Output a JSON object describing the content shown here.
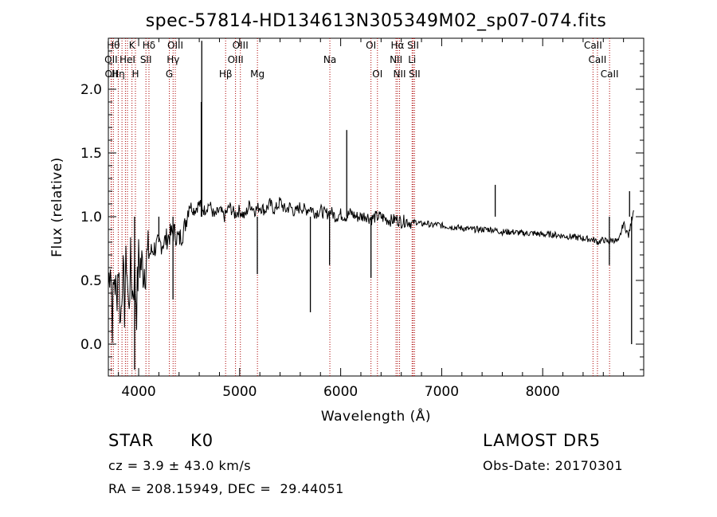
{
  "chart_data": {
    "type": "line",
    "title": "spec-57814-HD134613N305349M02_sp07-074.fits",
    "xlabel": "Wavelength (Å)",
    "ylabel": "Flux (relative)",
    "xlim": [
      3700,
      9000
    ],
    "ylim": [
      -0.25,
      2.4
    ],
    "x_ticks": [
      4000,
      5000,
      6000,
      7000,
      8000
    ],
    "y_ticks": [
      0.0,
      0.5,
      1.0,
      1.5,
      2.0
    ],
    "x_tick_labels": [
      "4000",
      "5000",
      "6000",
      "7000",
      "8000"
    ],
    "y_tick_labels": [
      "0.0",
      "0.5",
      "1.0",
      "1.5",
      "2.0"
    ],
    "grid": false,
    "line_color": "#000000",
    "marker_color": "#aa0000",
    "series": [
      {
        "x": [
          3700,
          3720,
          3740,
          3760,
          3780,
          3800,
          3820,
          3840,
          3860,
          3880,
          3900,
          3920,
          3940,
          3960,
          3980,
          4000,
          4050,
          4100,
          4150,
          4200,
          4250,
          4300,
          4350,
          4400,
          4450,
          4500,
          4550,
          4600,
          4650,
          4700,
          4750,
          4800,
          4850,
          4900,
          4950,
          5000,
          5050,
          5100,
          5150,
          5200,
          5250,
          5300,
          5350,
          5400,
          5450,
          5500,
          5550,
          5600,
          5650,
          5700,
          5750,
          5800,
          5850,
          5900,
          5950,
          6000,
          6050,
          6100,
          6150,
          6200,
          6250,
          6300,
          6350,
          6400,
          6450,
          6500,
          6550,
          6600,
          6650,
          6700,
          6750,
          6800,
          6850,
          6900,
          6950,
          7000,
          7100,
          7200,
          7300,
          7400,
          7500,
          7600,
          7700,
          7800,
          7900,
          8000,
          8100,
          8200,
          8300,
          8400,
          8500,
          8550,
          8600,
          8650,
          8700,
          8750,
          8800,
          8850,
          8900
        ],
        "y": [
          0.45,
          0.7,
          0.2,
          0.55,
          0.35,
          0.65,
          0.15,
          0.6,
          0.3,
          0.7,
          0.25,
          0.62,
          0.4,
          0.55,
          0.3,
          0.65,
          0.6,
          0.7,
          0.75,
          0.78,
          0.8,
          0.85,
          0.88,
          0.82,
          0.9,
          1.1,
          1.05,
          1.1,
          1.05,
          1.1,
          1.0,
          1.05,
          1.0,
          1.08,
          1.02,
          1.05,
          1.0,
          1.1,
          1.05,
          1.08,
          1.05,
          1.1,
          1.05,
          1.12,
          1.05,
          1.08,
          1.03,
          1.08,
          1.05,
          1.07,
          1.03,
          1.05,
          1.02,
          1.04,
          1.0,
          1.02,
          1.0,
          1.03,
          1.0,
          1.0,
          1.01,
          0.98,
          1.0,
          1.0,
          0.98,
          0.97,
          0.98,
          0.96,
          0.97,
          0.95,
          0.96,
          0.94,
          0.95,
          0.93,
          0.94,
          0.93,
          0.92,
          0.91,
          0.9,
          0.9,
          0.9,
          0.88,
          0.88,
          0.87,
          0.87,
          0.86,
          0.86,
          0.85,
          0.84,
          0.83,
          0.82,
          0.8,
          0.82,
          0.8,
          0.82,
          0.8,
          0.95,
          0.85,
          1.05
        ]
      }
    ],
    "spikes": [
      {
        "x": 3960,
        "y": -0.2
      },
      {
        "x": 4200,
        "y": 0.8
      },
      {
        "x": 4340,
        "y": 0.35
      },
      {
        "x": 4620,
        "y": 1.9
      },
      {
        "x": 4625,
        "y": 2.38
      },
      {
        "x": 5175,
        "y": 0.55
      },
      {
        "x": 5700,
        "y": 0.25
      },
      {
        "x": 5890,
        "y": 0.62
      },
      {
        "x": 6060,
        "y": 1.68
      },
      {
        "x": 6300,
        "y": 0.52
      },
      {
        "x": 7530,
        "y": 1.25
      },
      {
        "x": 8660,
        "y": 0.62
      },
      {
        "x": 8860,
        "y": 1.2
      },
      {
        "x": 8880,
        "y": -0.0
      }
    ],
    "lines": [
      {
        "x": 3727,
        "label": "OII",
        "row": 1
      },
      {
        "x": 3730,
        "label": "OII",
        "row": 2
      },
      {
        "x": 3750,
        "label": "Hθ",
        "row": 0
      },
      {
        "x": 3798,
        "label": "Hη",
        "row": 2
      },
      {
        "x": 3835,
        "label": "",
        "row": 0
      },
      {
        "x": 3869,
        "label": "",
        "row": 0
      },
      {
        "x": 3889,
        "label": "HeI",
        "row": 1
      },
      {
        "x": 3934,
        "label": "K",
        "row": 0
      },
      {
        "x": 3968,
        "label": "H",
        "row": 2
      },
      {
        "x": 4072,
        "label": "SII",
        "row": 1
      },
      {
        "x": 4102,
        "label": "Hδ",
        "row": 0
      },
      {
        "x": 4304,
        "label": "G",
        "row": 2
      },
      {
        "x": 4341,
        "label": "Hγ",
        "row": 1
      },
      {
        "x": 4363,
        "label": "OIII",
        "row": 0
      },
      {
        "x": 4861,
        "label": "Hβ",
        "row": 2
      },
      {
        "x": 4959,
        "label": "OIII",
        "row": 1
      },
      {
        "x": 5007,
        "label": "OIII",
        "row": 0
      },
      {
        "x": 5176,
        "label": "Mg",
        "row": 2
      },
      {
        "x": 5893,
        "label": "Na",
        "row": 1
      },
      {
        "x": 6300,
        "label": "OI",
        "row": 0
      },
      {
        "x": 6364,
        "label": "OI",
        "row": 2
      },
      {
        "x": 6548,
        "label": "NII",
        "row": 1
      },
      {
        "x": 6563,
        "label": "Hα",
        "row": 0
      },
      {
        "x": 6583,
        "label": "NII",
        "row": 2
      },
      {
        "x": 6707,
        "label": "Li",
        "row": 1
      },
      {
        "x": 6717,
        "label": "SII",
        "row": 0
      },
      {
        "x": 6731,
        "label": "SII",
        "row": 2
      },
      {
        "x": 8498,
        "label": "CaII",
        "row": 0
      },
      {
        "x": 8542,
        "label": "CaII",
        "row": 1
      },
      {
        "x": 8662,
        "label": "CaII",
        "row": 2
      }
    ]
  },
  "info": {
    "class": "STAR",
    "subclass": "K0",
    "survey": "LAMOST DR5",
    "cz": "cz = 3.9 ± 43.0 km/s",
    "obs_date": "Obs-Date: 20170301",
    "coords": "RA = 208.15949, DEC =  29.44051"
  }
}
